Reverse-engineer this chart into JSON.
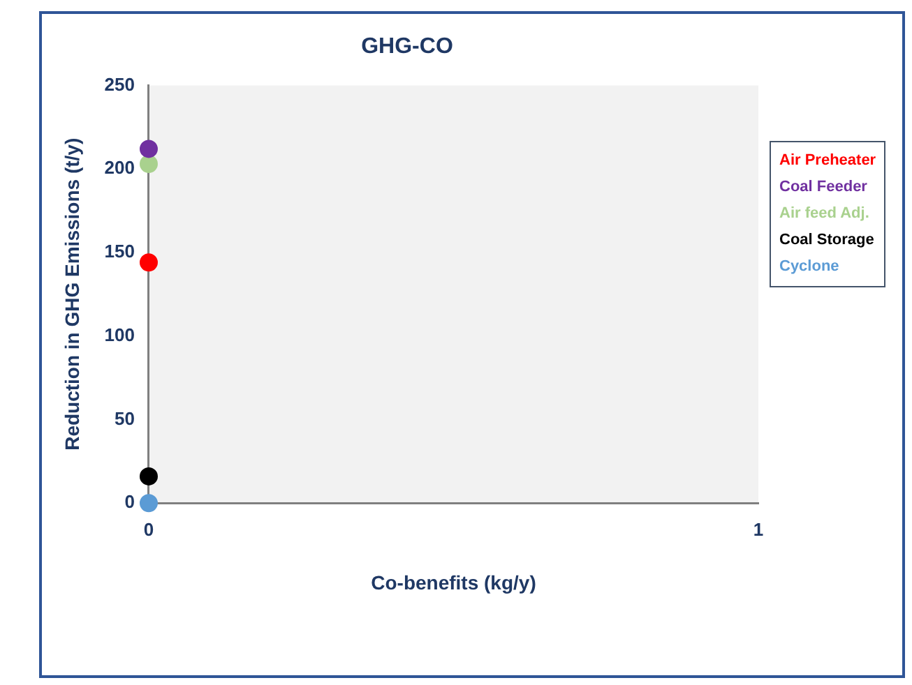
{
  "chart_data": {
    "type": "scatter",
    "title": "GHG-CO",
    "xlabel": "Co-benefits (kg/y)",
    "ylabel": "Reduction in GHG Emissions (t/y)",
    "x": [
      0
    ],
    "series": [
      {
        "name": "Air Preheater",
        "color": "#ff0000",
        "values": [
          144
        ]
      },
      {
        "name": "Coal Feeder",
        "color": "#7030a0",
        "values": [
          212
        ]
      },
      {
        "name": "Air feed Adj.",
        "color": "#a9d18e",
        "values": [
          203
        ]
      },
      {
        "name": "Coal Storage",
        "color": "#000000",
        "values": [
          16
        ]
      },
      {
        "name": "Cyclone",
        "color": "#5b9bd5",
        "values": [
          0
        ]
      }
    ],
    "xlim": [
      0,
      1
    ],
    "xticks": [
      0,
      1
    ],
    "ylim": [
      0,
      250
    ],
    "yticks": [
      0,
      50,
      100,
      150,
      200,
      250
    ],
    "grid": false,
    "legend": "right",
    "marker": "circle"
  }
}
